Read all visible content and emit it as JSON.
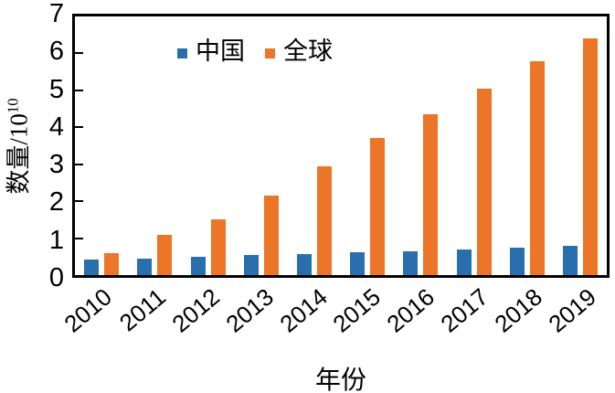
{
  "chart_data": {
    "type": "bar",
    "title": "",
    "categories": [
      "2010",
      "2011",
      "2012",
      "2013",
      "2014",
      "2015",
      "2016",
      "2017",
      "2018",
      "2019"
    ],
    "series": [
      {
        "name": "中国",
        "color": "#2a6fad",
        "values": [
          0.42,
          0.45,
          0.5,
          0.55,
          0.58,
          0.62,
          0.65,
          0.7,
          0.74,
          0.78
        ]
      },
      {
        "name": "全球",
        "color": "#ed7527",
        "values": [
          0.6,
          1.1,
          1.5,
          2.15,
          2.95,
          3.7,
          4.35,
          5.05,
          5.8,
          6.4
        ]
      }
    ],
    "xlabel": "年份",
    "ylabel": "数量/10¹⁰",
    "ylabel_base": "数量/10",
    "ylabel_exponent": "10",
    "ylim": [
      0,
      7
    ],
    "yticks": [
      0,
      1,
      2,
      3,
      4,
      5,
      6,
      7
    ],
    "grid": false,
    "legend_position": "top-left-inside",
    "axis_color": "#000000",
    "background_color": "#ffffff"
  }
}
